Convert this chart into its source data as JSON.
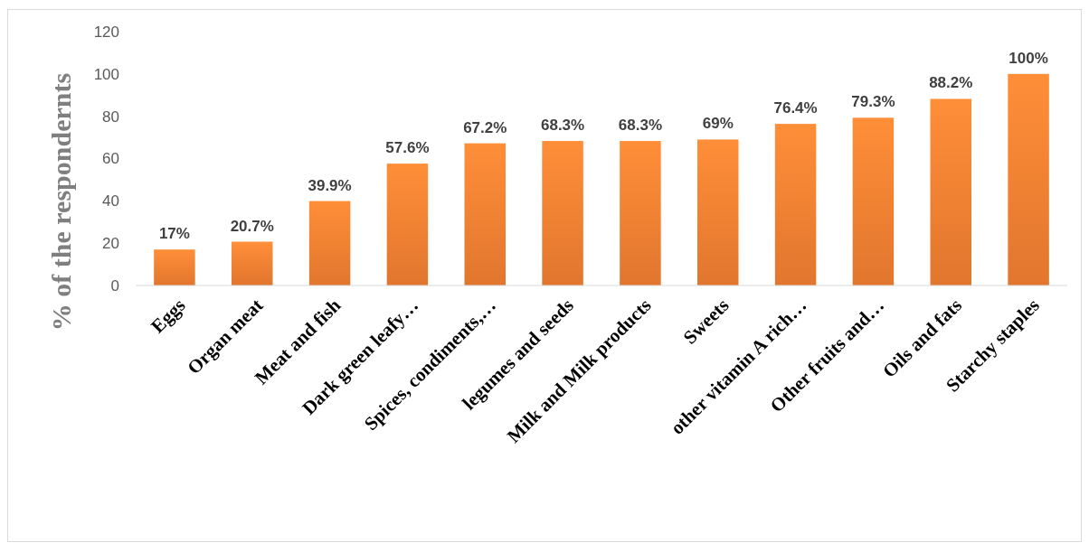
{
  "chart_data": {
    "type": "bar",
    "ylabel": "% of the respondernts",
    "categories": [
      "Eggs",
      "Organ meat",
      "Meat and fish",
      "Dark green leafy…",
      "Spices, condiments,…",
      "legumes and seeds",
      "Milk and Milk products",
      "Sweets",
      "other vitamin A rich…",
      "Other fruits and…",
      "Oils and fats",
      "Starchy staples"
    ],
    "values": [
      17,
      20.7,
      39.9,
      57.6,
      67.2,
      68.3,
      68.3,
      69,
      76.4,
      79.3,
      88.2,
      100
    ],
    "value_labels": [
      "17%",
      "20.7%",
      "39.9%",
      "57.6%",
      "67.2%",
      "68.3%",
      "68.3%",
      "69%",
      "76.4%",
      "79.3%",
      "88.2%",
      "100%"
    ],
    "color": "#ed7d31",
    "ylim": [
      0,
      120
    ],
    "yticks": [
      0,
      20,
      40,
      60,
      80,
      100,
      120
    ],
    "grid": false
  }
}
